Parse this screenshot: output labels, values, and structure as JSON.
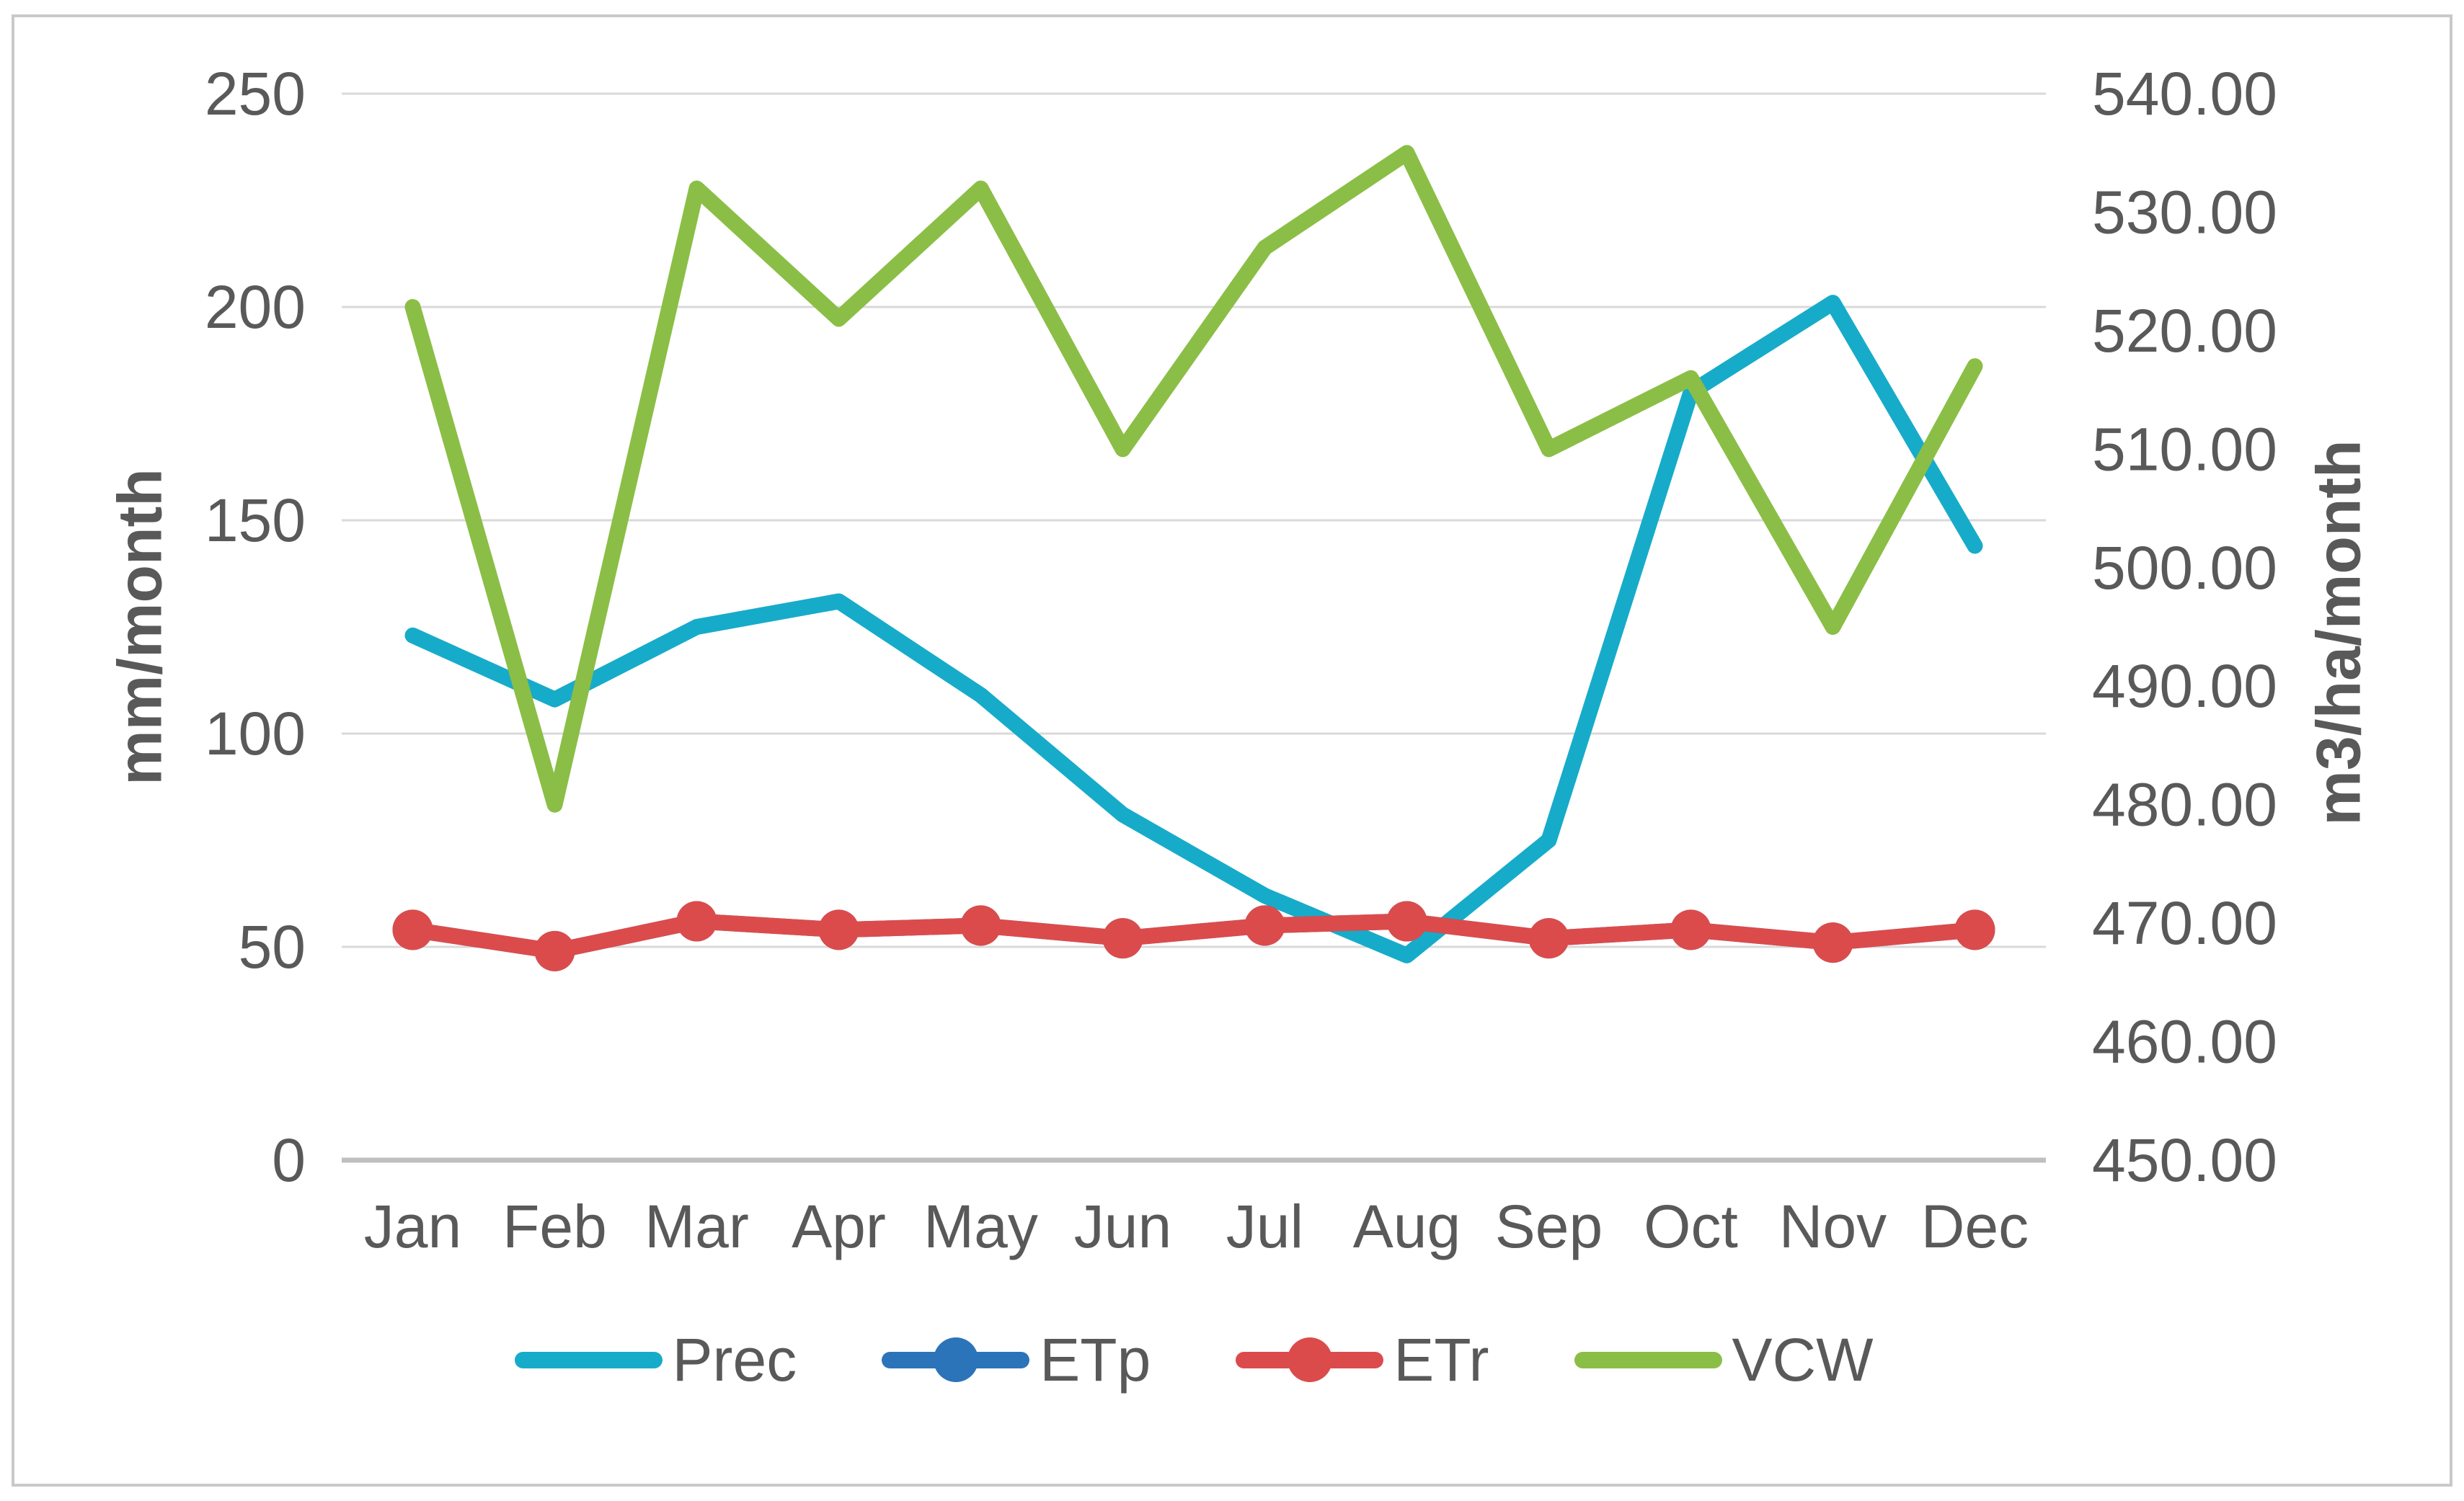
{
  "figure": {
    "left_axis_title": "mm/month",
    "right_axis_title": "m3/ha/month"
  },
  "chart_data": {
    "type": "line",
    "title": "",
    "categories": [
      "Jan",
      "Feb",
      "Mar",
      "Apr",
      "May",
      "Jun",
      "Jul",
      "Aug",
      "Sep",
      "Oct",
      "Nov",
      "Dec"
    ],
    "series": [
      {
        "name": "Prec",
        "axis": "left",
        "unit": "mm/month",
        "color": "#17abca",
        "marker": false,
        "values": [
          123,
          108,
          125,
          131,
          109,
          81,
          62,
          48,
          75,
          180,
          201,
          144
        ]
      },
      {
        "name": "ETp",
        "axis": "left",
        "unit": "mm/month",
        "color": "#2b74b9",
        "marker": true,
        "values": [
          54,
          49,
          56,
          54,
          55,
          52,
          55,
          56,
          52,
          54,
          51,
          54
        ]
      },
      {
        "name": "ETr",
        "axis": "left",
        "unit": "mm/month",
        "color": "#dc4b4b",
        "marker": true,
        "values": [
          54,
          49,
          56,
          54,
          55,
          52,
          55,
          56,
          52,
          54,
          51,
          54
        ]
      },
      {
        "name": "VCW",
        "axis": "right",
        "unit": "m3/ha/month",
        "color": "#8bbe46",
        "marker": false,
        "values": [
          522,
          480,
          532,
          521,
          532,
          510,
          527,
          535,
          510,
          516,
          495,
          517
        ]
      }
    ],
    "left_axis": {
      "label": "mm/month",
      "min": 0,
      "max": 250,
      "ticks": [
        "250",
        "200",
        "150",
        "100",
        "50",
        "0"
      ]
    },
    "right_axis": {
      "label": "m3/ha/month",
      "min": 450,
      "max": 540,
      "ticks": [
        "540.00",
        "530.00",
        "520.00",
        "510.00",
        "500.00",
        "490.00",
        "480.00",
        "470.00",
        "460.00",
        "450.00"
      ]
    },
    "grid": true,
    "legend_position": "bottom",
    "style": {
      "gridline_color": "#d9d9d9",
      "axisline_color": "#bfbfbf",
      "tick_text_color": "#595959",
      "line_width": 22,
      "marker_radius": 28,
      "tick_font_size": 84
    }
  }
}
